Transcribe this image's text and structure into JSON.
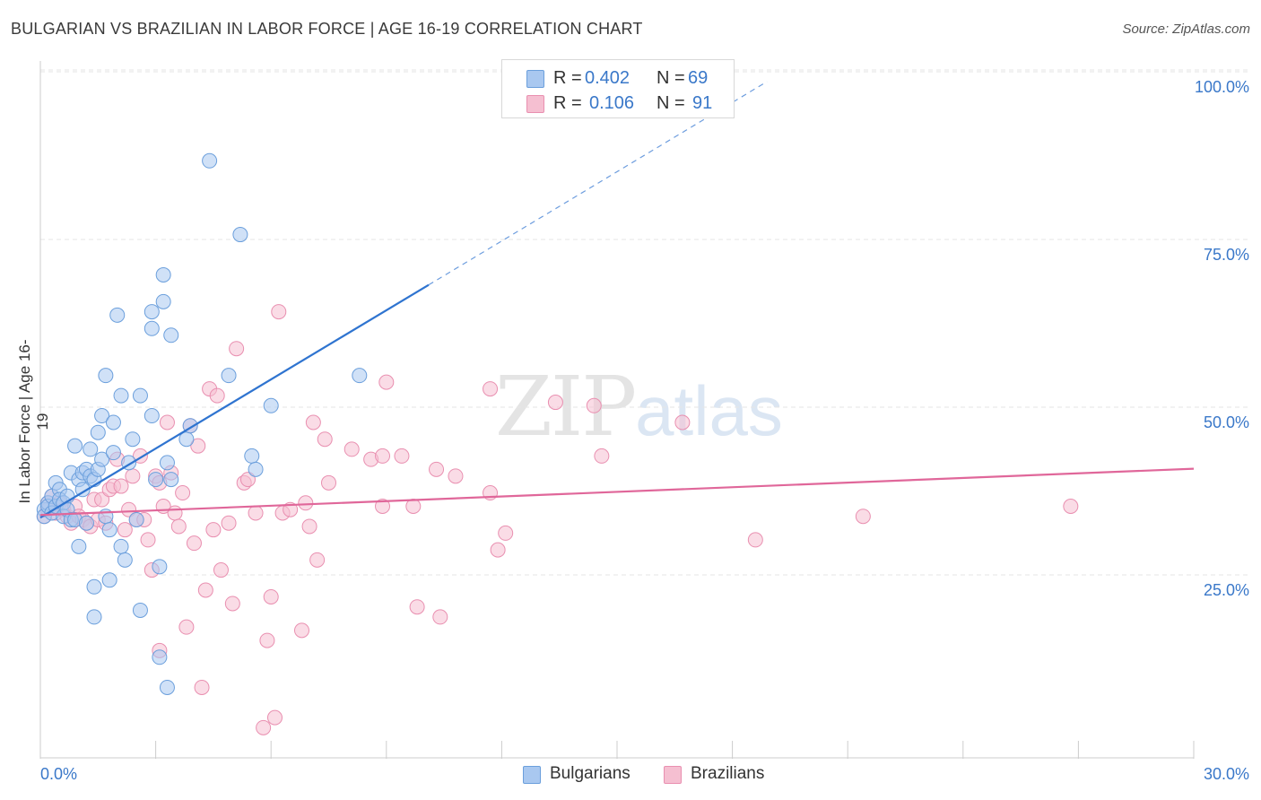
{
  "title": "BULGARIAN VS BRAZILIAN IN LABOR FORCE | AGE 16-19 CORRELATION CHART",
  "source": "Source: ZipAtlas.com",
  "watermark": {
    "zip": "ZIP",
    "atlas": "atlas"
  },
  "legend_top": {
    "rows": [
      {
        "r_label": "R =",
        "r_value": "0.402",
        "n_label": "N =",
        "n_value": "69"
      },
      {
        "r_label": "R =",
        "r_value": "0.106",
        "n_label": "N =",
        "n_value": "91"
      }
    ]
  },
  "legend_bottom": [
    "Bulgarians",
    "Brazilians"
  ],
  "colors": {
    "bulgarian_fill": "#a9c8f0",
    "bulgarian_stroke": "#6b9fdc",
    "bulgarian_line": "#2f74d0",
    "brazilian_fill": "#f5bfd1",
    "brazilian_stroke": "#e98fb0",
    "brazilian_line": "#e0679a",
    "axis_text": "#3a78c9",
    "grid": "#e6e6e6"
  },
  "chart_data": {
    "type": "scatter",
    "title": "BULGARIAN VS BRAZILIAN IN LABOR FORCE | AGE 16-19 CORRELATION CHART",
    "xlabel": "",
    "ylabel": "In Labor Force | Age 16-19",
    "xlim": [
      0,
      30
    ],
    "ylim": [
      0,
      105
    ],
    "x_tick_labels": [
      "0.0%",
      "30.0%"
    ],
    "y_ticks": [
      25,
      50,
      75,
      100
    ],
    "y_tick_labels": [
      "25.0%",
      "50.0%",
      "75.0%",
      "100.0%"
    ],
    "grid": true,
    "legend_position": "top-center",
    "series": [
      {
        "name": "Bulgarians",
        "r": 0.402,
        "n": 69,
        "trend": {
          "x0": 0,
          "y0": 35.8,
          "x1": 10.1,
          "y1": 70.5,
          "dash_to_x": 18.9,
          "dash_to_y": 100.8
        },
        "points": [
          [
            0.1,
            37
          ],
          [
            0.1,
            36
          ],
          [
            0.2,
            38
          ],
          [
            0.2,
            37.5
          ],
          [
            0.3,
            39
          ],
          [
            0.3,
            36.5
          ],
          [
            0.4,
            37.5
          ],
          [
            0.4,
            41
          ],
          [
            0.5,
            40
          ],
          [
            0.5,
            38.5
          ],
          [
            0.6,
            38
          ],
          [
            0.6,
            36
          ],
          [
            0.7,
            39
          ],
          [
            0.7,
            37
          ],
          [
            0.8,
            42.5
          ],
          [
            0.8,
            35.5
          ],
          [
            0.9,
            46.5
          ],
          [
            0.9,
            35.5
          ],
          [
            1.0,
            41.5
          ],
          [
            1.0,
            31.5
          ],
          [
            1.1,
            40
          ],
          [
            1.1,
            42.5
          ],
          [
            1.2,
            43
          ],
          [
            1.2,
            35
          ],
          [
            1.3,
            42
          ],
          [
            1.3,
            46
          ],
          [
            1.4,
            41.5
          ],
          [
            1.4,
            25.5
          ],
          [
            1.4,
            21
          ],
          [
            1.5,
            48.5
          ],
          [
            1.5,
            43
          ],
          [
            1.6,
            44.5
          ],
          [
            1.6,
            51
          ],
          [
            1.7,
            36
          ],
          [
            1.7,
            57
          ],
          [
            1.8,
            26.5
          ],
          [
            1.8,
            34
          ],
          [
            1.9,
            50
          ],
          [
            1.9,
            45.5
          ],
          [
            2.0,
            66
          ],
          [
            2.1,
            54
          ],
          [
            2.1,
            31.5
          ],
          [
            2.2,
            29.5
          ],
          [
            2.3,
            44
          ],
          [
            2.4,
            47.5
          ],
          [
            2.5,
            35.5
          ],
          [
            2.6,
            22
          ],
          [
            2.6,
            54
          ],
          [
            2.9,
            51
          ],
          [
            2.9,
            64
          ],
          [
            2.9,
            66.5
          ],
          [
            3.0,
            41.5
          ],
          [
            3.1,
            28.5
          ],
          [
            3.1,
            15
          ],
          [
            3.2,
            68
          ],
          [
            3.2,
            72
          ],
          [
            3.3,
            10.5
          ],
          [
            3.3,
            44
          ],
          [
            3.4,
            63
          ],
          [
            3.4,
            41.5
          ],
          [
            3.8,
            47.5
          ],
          [
            3.9,
            49.5
          ],
          [
            4.4,
            89
          ],
          [
            4.9,
            57
          ],
          [
            5.2,
            78
          ],
          [
            5.5,
            45
          ],
          [
            5.6,
            43
          ],
          [
            6.0,
            52.5
          ],
          [
            8.3,
            57
          ]
        ]
      },
      {
        "name": "Brazilians",
        "r": 0.106,
        "n": 91,
        "trend": {
          "x0": 0,
          "y0": 36.2,
          "x1": 30,
          "y1": 43.1
        },
        "points": [
          [
            0.1,
            36
          ],
          [
            0.2,
            38
          ],
          [
            0.2,
            37
          ],
          [
            0.3,
            39
          ],
          [
            0.4,
            36.5
          ],
          [
            0.5,
            38
          ],
          [
            0.6,
            37
          ],
          [
            0.7,
            36
          ],
          [
            0.8,
            35
          ],
          [
            0.9,
            37.5
          ],
          [
            1.0,
            36
          ],
          [
            1.1,
            35.5
          ],
          [
            1.2,
            35
          ],
          [
            1.3,
            34.5
          ],
          [
            1.4,
            38.5
          ],
          [
            1.5,
            35.5
          ],
          [
            1.6,
            38.5
          ],
          [
            1.7,
            35
          ],
          [
            1.8,
            40
          ],
          [
            1.9,
            40.5
          ],
          [
            2.0,
            44.5
          ],
          [
            2.1,
            40.5
          ],
          [
            2.2,
            34
          ],
          [
            2.3,
            37
          ],
          [
            2.4,
            42
          ],
          [
            2.5,
            35.5
          ],
          [
            2.6,
            45
          ],
          [
            2.7,
            35.5
          ],
          [
            2.8,
            32.5
          ],
          [
            2.9,
            28
          ],
          [
            3.0,
            42
          ],
          [
            3.1,
            16
          ],
          [
            3.1,
            41
          ],
          [
            3.2,
            37.5
          ],
          [
            3.3,
            50
          ],
          [
            3.4,
            42.5
          ],
          [
            3.5,
            36.5
          ],
          [
            3.6,
            34.5
          ],
          [
            3.7,
            39.5
          ],
          [
            3.8,
            19.5
          ],
          [
            3.9,
            49.5
          ],
          [
            4.0,
            32
          ],
          [
            4.1,
            46.5
          ],
          [
            4.2,
            10.5
          ],
          [
            4.3,
            25
          ],
          [
            4.4,
            55
          ],
          [
            4.5,
            34
          ],
          [
            4.6,
            54
          ],
          [
            4.7,
            28
          ],
          [
            4.9,
            35
          ],
          [
            5.0,
            23
          ],
          [
            5.1,
            61
          ],
          [
            5.3,
            41
          ],
          [
            5.4,
            41.5
          ],
          [
            5.6,
            36.5
          ],
          [
            5.8,
            4.5
          ],
          [
            5.9,
            17.5
          ],
          [
            6.0,
            24
          ],
          [
            6.1,
            6
          ],
          [
            6.2,
            66.5
          ],
          [
            6.3,
            36.5
          ],
          [
            6.5,
            37
          ],
          [
            6.8,
            19
          ],
          [
            6.9,
            38
          ],
          [
            7.0,
            34.5
          ],
          [
            7.1,
            50
          ],
          [
            7.2,
            29.5
          ],
          [
            7.4,
            47.5
          ],
          [
            7.5,
            41
          ],
          [
            8.1,
            46
          ],
          [
            8.6,
            44.5
          ],
          [
            8.9,
            37.5
          ],
          [
            8.9,
            45
          ],
          [
            9.0,
            56
          ],
          [
            9.4,
            45
          ],
          [
            9.7,
            37.5
          ],
          [
            9.8,
            22.5
          ],
          [
            10.3,
            43
          ],
          [
            10.4,
            21
          ],
          [
            10.8,
            42
          ],
          [
            11.7,
            55
          ],
          [
            11.7,
            39.5
          ],
          [
            11.9,
            31
          ],
          [
            12.1,
            33.5
          ],
          [
            13.4,
            53
          ],
          [
            14.4,
            52.5
          ],
          [
            14.6,
            45
          ],
          [
            16.7,
            50
          ],
          [
            18.6,
            32.5
          ],
          [
            21.4,
            36
          ],
          [
            26.8,
            37.5
          ]
        ]
      }
    ]
  }
}
